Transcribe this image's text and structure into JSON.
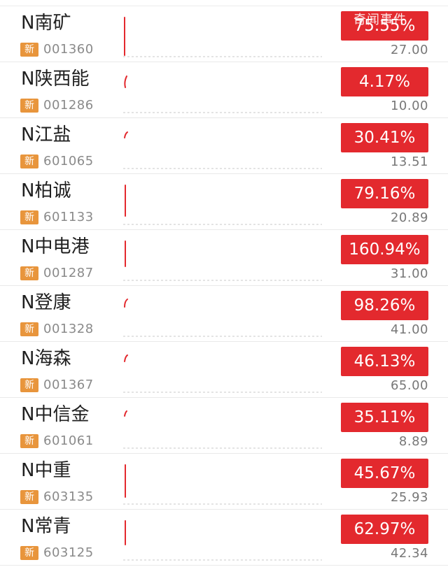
{
  "watermark": "奇闻事件",
  "badge_label": "新",
  "colors": {
    "up_red": "#e3292e",
    "new_badge": "#e8953c",
    "code_gray": "#8a8a8a",
    "price_gray": "#777777"
  },
  "stocks": [
    {
      "name": "N南矿",
      "code": "001360",
      "change": "75.55%",
      "price": "27.00"
    },
    {
      "name": "N陕西能",
      "code": "001286",
      "change": "4.17%",
      "price": "10.00"
    },
    {
      "name": "N江盐",
      "code": "601065",
      "change": "30.41%",
      "price": "13.51"
    },
    {
      "name": "N柏诚",
      "code": "601133",
      "change": "79.16%",
      "price": "20.89"
    },
    {
      "name": "N中电港",
      "code": "001287",
      "change": "160.94%",
      "price": "31.00"
    },
    {
      "name": "N登康",
      "code": "001328",
      "change": "98.26%",
      "price": "41.00"
    },
    {
      "name": "N海森",
      "code": "001367",
      "change": "46.13%",
      "price": "65.00"
    },
    {
      "name": "N中信金",
      "code": "601061",
      "change": "35.11%",
      "price": "8.89"
    },
    {
      "name": "N中重",
      "code": "603135",
      "change": "45.67%",
      "price": "25.93"
    },
    {
      "name": "N常青",
      "code": "603125",
      "change": "62.97%",
      "price": "42.34"
    }
  ]
}
